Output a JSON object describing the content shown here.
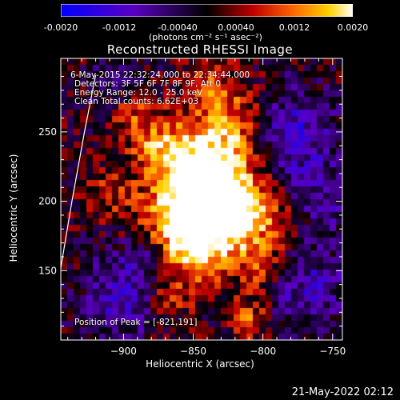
{
  "colorbar": {
    "tick_labels": [
      "-0.0020",
      "-0.0012",
      "-0.00040",
      "0.00040",
      "0.0012",
      "0.0020"
    ],
    "tick_values": [
      -0.002,
      -0.0012,
      -0.0004,
      0.0004,
      0.0012,
      0.002
    ],
    "range": [
      -0.002,
      0.002
    ],
    "units_label": "(photons cm⁻² s⁻¹ asec⁻²)",
    "colormap": "blue-purple-black-red-yellow-white"
  },
  "chart_data": {
    "type": "heatmap",
    "title": "Reconstructed RHESSI Image",
    "xlabel": "Heliocentric X (arcsec)",
    "ylabel": "Heliocentric Y (arcsec)",
    "xlim": [
      -945,
      -743
    ],
    "ylim": [
      100,
      303
    ],
    "x_ticks": [
      -900,
      -850,
      -800,
      -750
    ],
    "x_tick_labels": [
      "−900",
      "−850",
      "−800",
      "−750"
    ],
    "y_ticks": [
      150,
      200,
      250
    ],
    "y_tick_labels": [
      "150",
      "200",
      "250"
    ],
    "peak": [
      -821,
      191
    ],
    "limb_curve": [
      [
        -945,
        152
      ],
      [
        -937,
        200
      ],
      [
        -928,
        250
      ],
      [
        -920,
        291
      ]
    ],
    "annotations": [
      "6-May-2015 22:32:24.000 to 22:34:44.000",
      "Detectors: 3F 5F 6F 7F 8F 9F, Att 0",
      "Energy Range: 12.0 - 25.0 keV",
      "Clean      Total counts: 6.62E+03",
      "Position of Peak = [-821,191]"
    ]
  },
  "footer": {
    "timestamp": "21-May-2022 02:12"
  }
}
